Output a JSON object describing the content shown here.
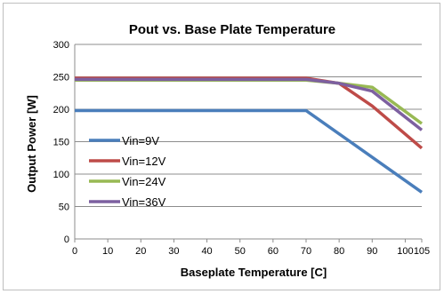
{
  "chart_data": {
    "type": "line",
    "title": "Pout vs. Base Plate Temperature",
    "xlabel": "Baseplate Temperature [C]",
    "ylabel": "Output Power [W]",
    "xlim": [
      0,
      105
    ],
    "ylim": [
      0,
      300
    ],
    "xticks": [
      0,
      10,
      20,
      30,
      40,
      50,
      60,
      70,
      80,
      90,
      100,
      105
    ],
    "yticks": [
      0,
      50,
      100,
      150,
      200,
      250,
      300
    ],
    "grid": true,
    "legend_position": "lower-left",
    "series": [
      {
        "name": "Vin=9V",
        "color": "#4a7ebb",
        "x": [
          0,
          70,
          105
        ],
        "y": [
          198,
          198,
          72
        ]
      },
      {
        "name": "Vin=12V",
        "color": "#be4b48",
        "x": [
          0,
          70,
          80,
          90,
          105
        ],
        "y": [
          248,
          248,
          240,
          205,
          140
        ]
      },
      {
        "name": "Vin=24V",
        "color": "#98b954",
        "x": [
          0,
          70,
          80,
          90,
          105
        ],
        "y": [
          245,
          245,
          240,
          234,
          178
        ]
      },
      {
        "name": "Vin=36V",
        "color": "#7d60a0",
        "x": [
          0,
          70,
          80,
          90,
          105
        ],
        "y": [
          246,
          246,
          240,
          228,
          168
        ]
      }
    ]
  }
}
